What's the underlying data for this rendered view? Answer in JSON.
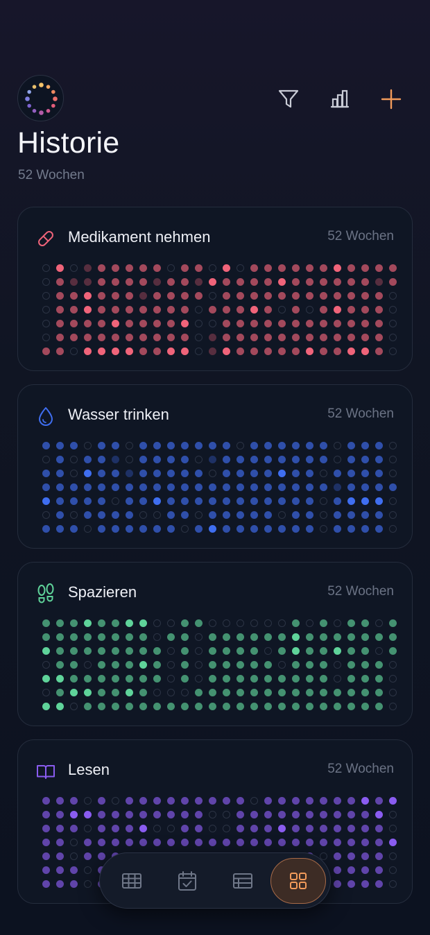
{
  "header": {
    "title": "Historie",
    "subtitle": "52 Wochen",
    "logo_icon": "dotted-ring-logo-icon",
    "actions": [
      {
        "name": "filter-icon",
        "color": "#c9ccd6"
      },
      {
        "name": "bar-chart-icon",
        "color": "#c9ccd6"
      },
      {
        "name": "plus-icon",
        "color": "#f29b5a"
      }
    ]
  },
  "habits": [
    {
      "title": "Medikament nehmen",
      "weeks": "52 Wochen",
      "icon": "pill-icon",
      "color": "#f0647a",
      "grid": [
        "03012222202203022222232222",
        "02112222122132222322222212",
        "02232221222202222222222220",
        "02232222222022232020232220",
        "02222322223002222222222220",
        "02222222222012222222222220",
        "22033332233013222223223320"
      ]
    },
    {
      "title": "Wasser trinken",
      "weeks": "52 Wochen",
      "icon": "water-drop-icon",
      "color": "#3f6ef0",
      "grid": [
        "22202202222222022222202220",
        "02022102222012222222202220",
        "22032212222202222322022220",
        "22222222222222222222212222",
        "32222022322222222222023330",
        "02022220022022222022022220",
        "22202222220232222222022220"
      ]
    },
    {
      "title": "Spazieren",
      "weeks": "52 Wochen",
      "icon": "footprints-icon",
      "color": "#5fd39a",
      "grid": [
        "22232233002200000020202202",
        "22222222022022222232222222",
        "32222222202022220232232202",
        "02202223202022222022202220",
        "33222222202022222222202220",
        "02332232000222222222222220",
        "33022222222222222222222220"
      ]
    },
    {
      "title": "Lesen",
      "weeks": "52 Wochen",
      "icon": "book-icon",
      "color": "#8a5cf0",
      "grid": [
        "22202022222222202222222323",
        "22332222222200222222222230",
        "22202223002200222322222220",
        "22022222222222222222222223",
        "22022220022022222022022220",
        "22202222220222222222022220",
        "22202222220222222222222220"
      ]
    }
  ],
  "bottom_nav": [
    {
      "name": "nav-table-icon",
      "active": false
    },
    {
      "name": "nav-calendar-check-icon",
      "active": false
    },
    {
      "name": "nav-list-icon",
      "active": false
    },
    {
      "name": "nav-grid-icon",
      "active": true
    }
  ],
  "colors": {
    "accent": "#f29b5a",
    "muted": "#6b7385"
  }
}
